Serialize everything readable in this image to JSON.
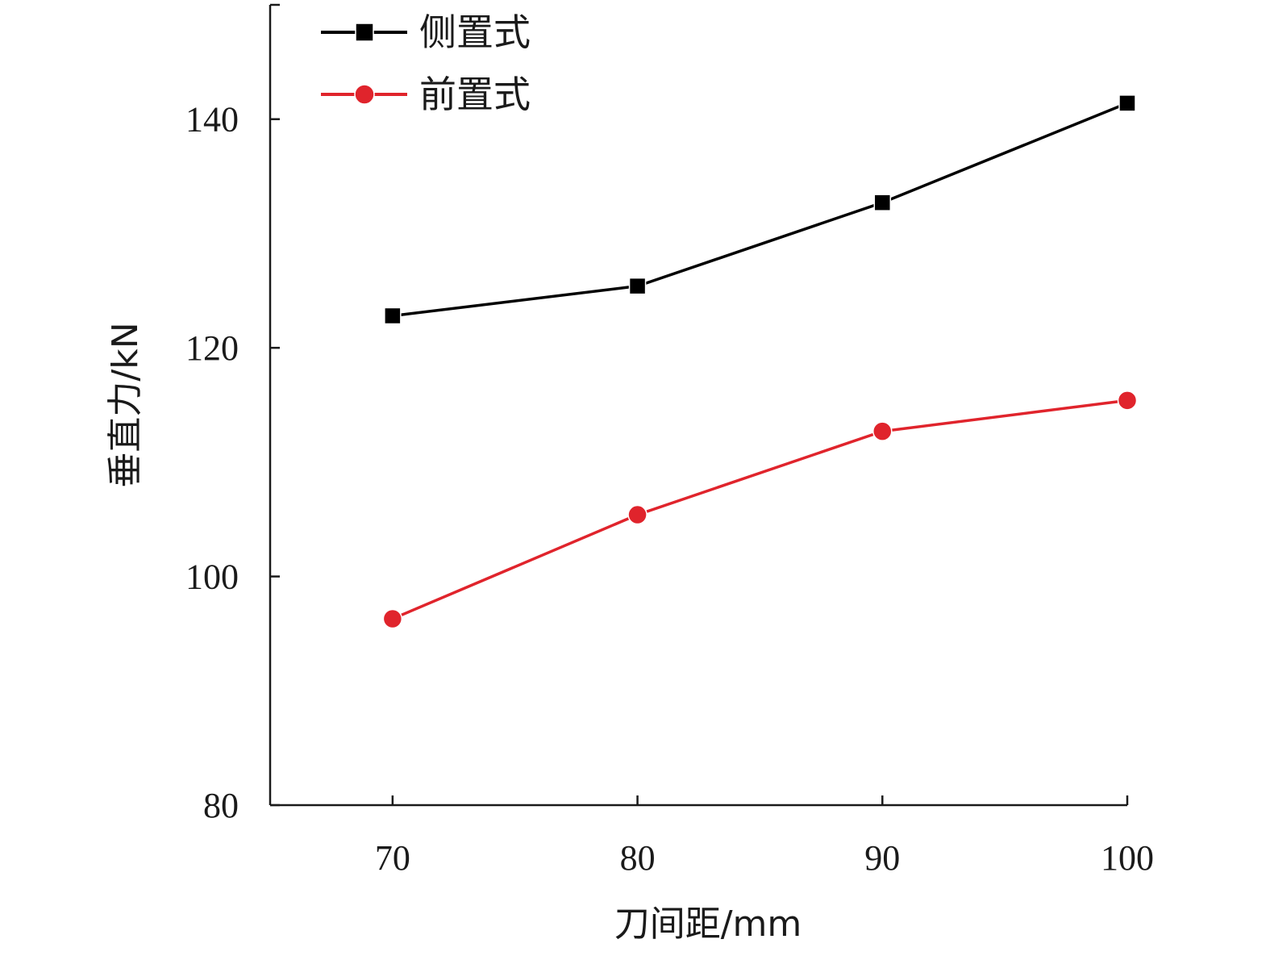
{
  "chart_data": {
    "type": "line",
    "xlabel": "刀间距/mm",
    "ylabel": "垂直力/kN",
    "x": [
      70,
      80,
      90,
      100
    ],
    "xlim": [
      65,
      100
    ],
    "ylim": [
      80,
      150
    ],
    "xticks": [
      "70",
      "80",
      "90",
      "100"
    ],
    "yticks": [
      "80",
      "100",
      "120",
      "140"
    ],
    "xtick_values": [
      70,
      80,
      90,
      100
    ],
    "ytick_values": [
      80,
      100,
      120,
      140
    ],
    "grid": false,
    "legend_position": "top-left",
    "series": [
      {
        "name": "侧置式",
        "values": [
          122.8,
          125.4,
          132.7,
          141.4
        ],
        "color": "#000000",
        "marker": "square"
      },
      {
        "name": "前置式",
        "values": [
          96.3,
          105.4,
          112.7,
          115.4
        ],
        "color": "#e0242c",
        "marker": "circle"
      }
    ]
  }
}
